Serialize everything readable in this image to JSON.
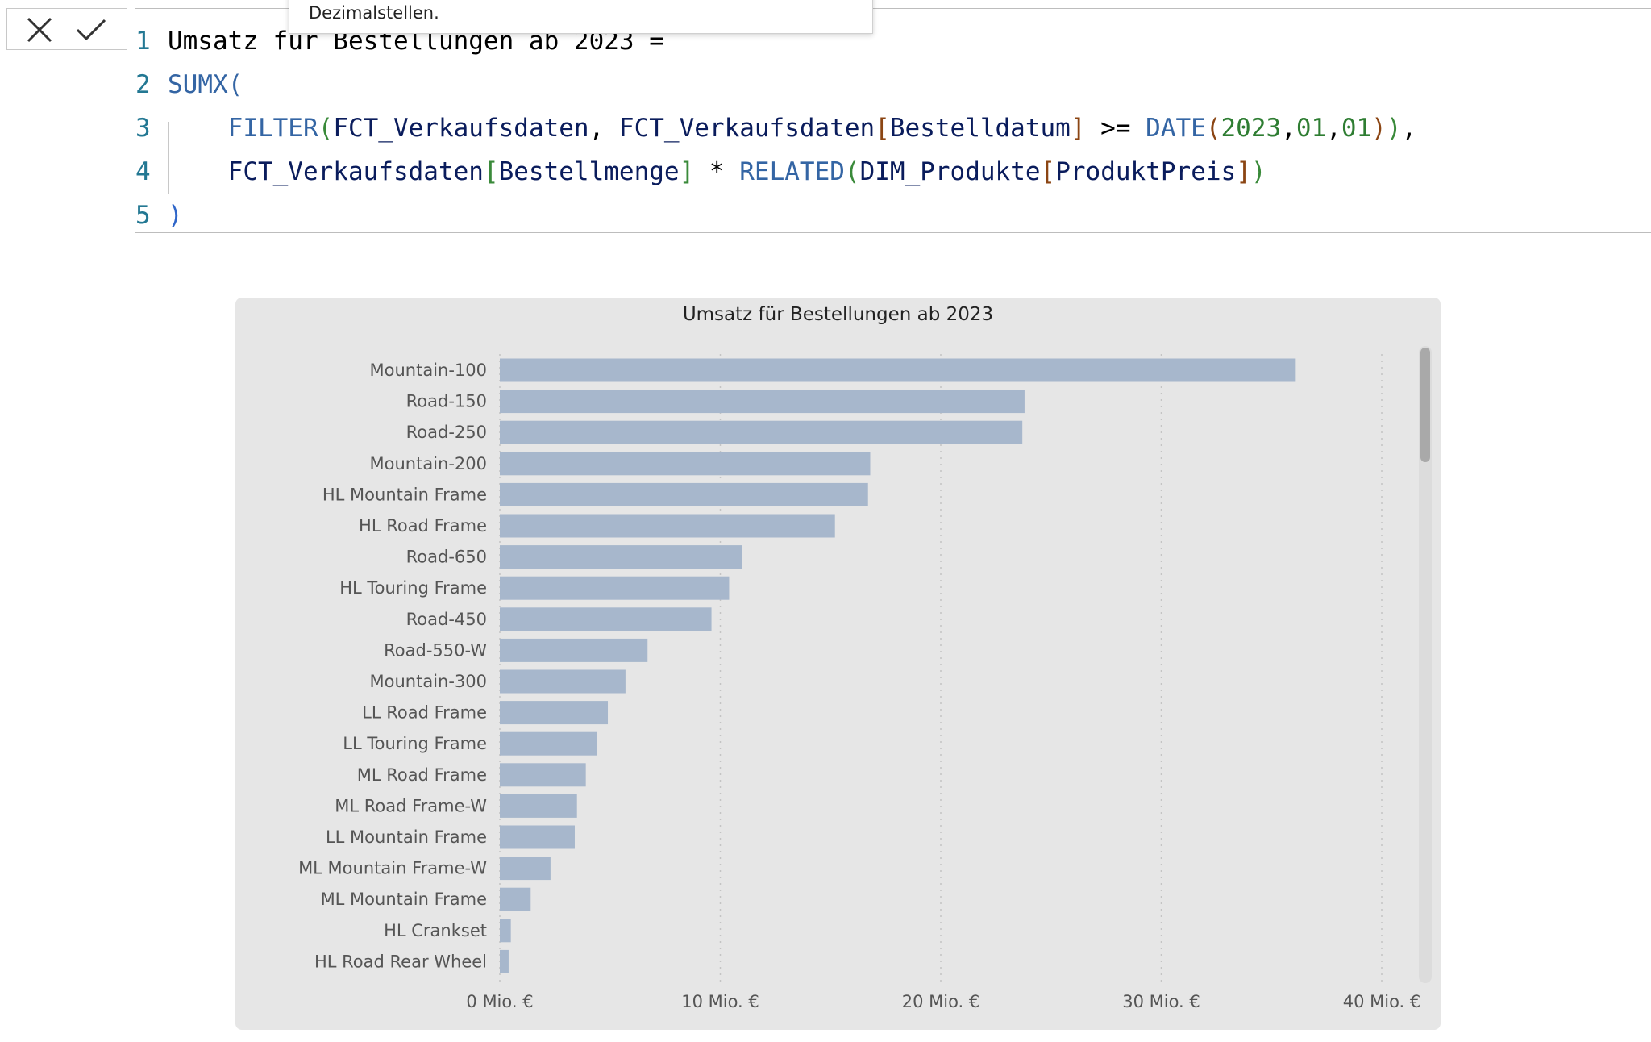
{
  "formula_bar": {
    "tooltip_text": "Dezimalstellen.",
    "lines": [
      {
        "no": "1",
        "tokens": [
          {
            "t": "Umsatz für Bestellungen ab 2023 =",
            "c": "t-op"
          }
        ]
      },
      {
        "no": "2",
        "tokens": [
          {
            "t": "SUMX(",
            "c": "t-fn"
          }
        ]
      },
      {
        "no": "3",
        "tokens": [
          {
            "t": "    ",
            "c": "t-op"
          },
          {
            "t": "FILTER",
            "c": "t-fn"
          },
          {
            "t": "(",
            "c": "t-p1"
          },
          {
            "t": "FCT_Verkaufsdaten",
            "c": "t-tbl"
          },
          {
            "t": ", ",
            "c": "t-op"
          },
          {
            "t": "FCT_Verkaufsdaten",
            "c": "t-tbl"
          },
          {
            "t": "[",
            "c": "t-brk"
          },
          {
            "t": "Bestelldatum",
            "c": "t-col"
          },
          {
            "t": "]",
            "c": "t-brk"
          },
          {
            "t": " >= ",
            "c": "t-op"
          },
          {
            "t": "DATE",
            "c": "t-fn"
          },
          {
            "t": "(",
            "c": "t-p2"
          },
          {
            "t": "2023",
            "c": "t-num"
          },
          {
            "t": ",",
            "c": "t-op"
          },
          {
            "t": "01",
            "c": "t-num"
          },
          {
            "t": ",",
            "c": "t-op"
          },
          {
            "t": "01",
            "c": "t-num"
          },
          {
            "t": ")",
            "c": "t-p2"
          },
          {
            "t": ")",
            "c": "t-p1"
          },
          {
            "t": ",",
            "c": "t-op"
          }
        ]
      },
      {
        "no": "4",
        "tokens": [
          {
            "t": "    ",
            "c": "t-op"
          },
          {
            "t": "FCT_Verkaufsdaten",
            "c": "t-tbl"
          },
          {
            "t": "[",
            "c": "t-p1"
          },
          {
            "t": "Bestellmenge",
            "c": "t-col"
          },
          {
            "t": "]",
            "c": "t-p1"
          },
          {
            "t": " * ",
            "c": "t-op"
          },
          {
            "t": "RELATED",
            "c": "t-fn"
          },
          {
            "t": "(",
            "c": "t-p1"
          },
          {
            "t": "DIM_Produkte",
            "c": "t-tbl"
          },
          {
            "t": "[",
            "c": "t-brk"
          },
          {
            "t": "ProduktPreis",
            "c": "t-col"
          },
          {
            "t": "]",
            "c": "t-brk"
          },
          {
            "t": ")",
            "c": "t-p1"
          }
        ]
      },
      {
        "no": "5",
        "tokens": [
          {
            "t": ")",
            "c": "t-p3"
          }
        ]
      }
    ]
  },
  "chart_data": {
    "type": "bar",
    "orientation": "horizontal",
    "title": "Umsatz für Bestellungen ab 2023",
    "xlabel": "",
    "ylabel": "",
    "xlim": [
      0,
      40
    ],
    "grid": true,
    "bar_color": "#a7b7cc",
    "unit_suffix": " Mio. €",
    "ticks": [
      0,
      10,
      20,
      30,
      40
    ],
    "tick_labels": [
      "0 Mio. €",
      "10 Mio. €",
      "20 Mio. €",
      "30 Mio. €",
      "40 Mio. €"
    ],
    "categories": [
      "Mountain-100",
      "Road-150",
      "Road-250",
      "Mountain-200",
      "HL Mountain Frame",
      "HL Road Frame",
      "Road-650",
      "HL Touring Frame",
      "Road-450",
      "Road-550-W",
      "Mountain-300",
      "LL Road Frame",
      "LL Touring Frame",
      "ML Road Frame",
      "ML Road Frame-W",
      "LL Mountain Frame",
      "ML Mountain Frame-W",
      "ML Mountain Frame",
      "HL Crankset",
      "HL Road Rear Wheel"
    ],
    "values": [
      36.1,
      23.8,
      23.7,
      16.8,
      16.7,
      15.2,
      11.0,
      10.4,
      9.6,
      6.7,
      5.7,
      4.9,
      4.4,
      3.9,
      3.5,
      3.4,
      2.3,
      1.4,
      0.5,
      0.4
    ]
  }
}
